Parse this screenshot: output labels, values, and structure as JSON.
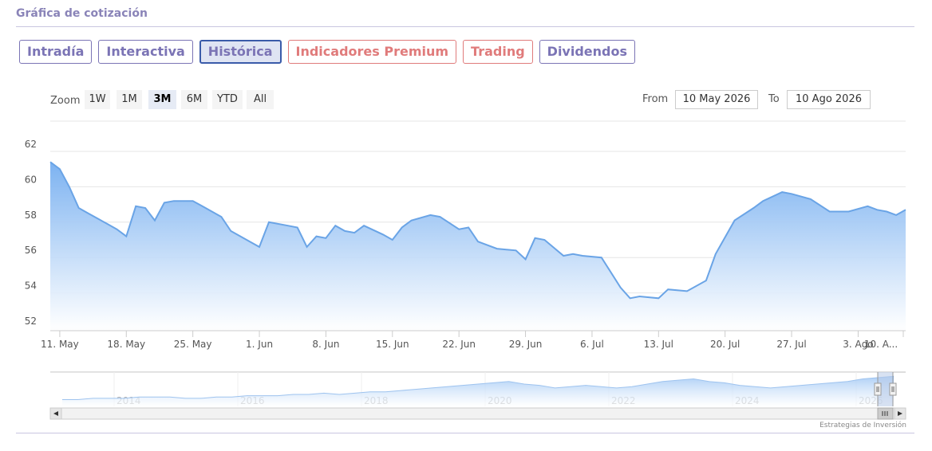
{
  "page": {
    "section_title": "Gráfica de cotización",
    "credit": "Estrategias de Inversión"
  },
  "tabs": [
    {
      "label": "Intradía",
      "state": "default"
    },
    {
      "label": "Interactiva",
      "state": "default"
    },
    {
      "label": "Histórica",
      "state": "active"
    },
    {
      "label": "Indicadores Premium",
      "state": "red"
    },
    {
      "label": "Trading",
      "state": "red"
    },
    {
      "label": "Dividendos",
      "state": "default"
    }
  ],
  "zoom": {
    "label": "Zoom",
    "buttons": [
      "1W",
      "1M",
      "3M",
      "6M",
      "YTD",
      "All"
    ],
    "selected": "3M"
  },
  "range": {
    "from_label": "From",
    "from_value": "10 May 2026",
    "to_label": "To",
    "to_value": "10 Ago 2026"
  },
  "colors": {
    "line": "#6aa4e6",
    "fill_top": "#75aef0",
    "fill_bottom": "#ffffff",
    "tab_primary": "#7b74b5",
    "tab_red": "#e07b7b",
    "title": "#8a84b8"
  },
  "chart_data": {
    "type": "area",
    "title": "",
    "xlabel": "",
    "ylabel": "",
    "ylim": [
      52,
      62
    ],
    "y_ticks": [
      52,
      54,
      56,
      58,
      60,
      62
    ],
    "x_ticks": [
      "11. May",
      "18. May",
      "25. May",
      "1. Jun",
      "8. Jun",
      "15. Jun",
      "22. Jun",
      "29. Jun",
      "6. Jul",
      "13. Jul",
      "20. Jul",
      "27. Jul",
      "3. Ago",
      "10. A..."
    ],
    "grid": true,
    "legend": "none",
    "series": [
      {
        "name": "",
        "values": [
          {
            "x": "2026-05-10",
            "y": 61.4
          },
          {
            "x": "2026-05-11",
            "y": 61.0
          },
          {
            "x": "2026-05-12",
            "y": 60.0
          },
          {
            "x": "2026-05-13",
            "y": 58.8
          },
          {
            "x": "2026-05-14",
            "y": 58.5
          },
          {
            "x": "2026-05-15",
            "y": 58.2
          },
          {
            "x": "2026-05-16",
            "y": 57.9
          },
          {
            "x": "2026-05-17",
            "y": 57.6
          },
          {
            "x": "2026-05-18",
            "y": 57.2
          },
          {
            "x": "2026-05-19",
            "y": 58.9
          },
          {
            "x": "2026-05-20",
            "y": 58.8
          },
          {
            "x": "2026-05-21",
            "y": 58.1
          },
          {
            "x": "2026-05-22",
            "y": 59.1
          },
          {
            "x": "2026-05-23",
            "y": 59.2
          },
          {
            "x": "2026-05-25",
            "y": 59.2
          },
          {
            "x": "2026-05-26",
            "y": 58.9
          },
          {
            "x": "2026-05-28",
            "y": 58.3
          },
          {
            "x": "2026-05-29",
            "y": 57.5
          },
          {
            "x": "2026-05-31",
            "y": 56.9
          },
          {
            "x": "2026-06-01",
            "y": 56.6
          },
          {
            "x": "2026-06-02",
            "y": 58.0
          },
          {
            "x": "2026-06-04",
            "y": 57.8
          },
          {
            "x": "2026-06-05",
            "y": 57.7
          },
          {
            "x": "2026-06-06",
            "y": 56.6
          },
          {
            "x": "2026-06-07",
            "y": 57.2
          },
          {
            "x": "2026-06-08",
            "y": 57.1
          },
          {
            "x": "2026-06-09",
            "y": 57.8
          },
          {
            "x": "2026-06-10",
            "y": 57.5
          },
          {
            "x": "2026-06-11",
            "y": 57.4
          },
          {
            "x": "2026-06-12",
            "y": 57.8
          },
          {
            "x": "2026-06-14",
            "y": 57.3
          },
          {
            "x": "2026-06-15",
            "y": 57.0
          },
          {
            "x": "2026-06-16",
            "y": 57.7
          },
          {
            "x": "2026-06-17",
            "y": 58.1
          },
          {
            "x": "2026-06-19",
            "y": 58.4
          },
          {
            "x": "2026-06-20",
            "y": 58.3
          },
          {
            "x": "2026-06-22",
            "y": 57.6
          },
          {
            "x": "2026-06-23",
            "y": 57.7
          },
          {
            "x": "2026-06-24",
            "y": 56.9
          },
          {
            "x": "2026-06-26",
            "y": 56.5
          },
          {
            "x": "2026-06-28",
            "y": 56.4
          },
          {
            "x": "2026-06-29",
            "y": 55.9
          },
          {
            "x": "2026-06-30",
            "y": 57.1
          },
          {
            "x": "2026-07-01",
            "y": 57.0
          },
          {
            "x": "2026-07-03",
            "y": 56.1
          },
          {
            "x": "2026-07-04",
            "y": 56.2
          },
          {
            "x": "2026-07-05",
            "y": 56.1
          },
          {
            "x": "2026-07-07",
            "y": 56.0
          },
          {
            "x": "2026-07-09",
            "y": 54.3
          },
          {
            "x": "2026-07-10",
            "y": 53.7
          },
          {
            "x": "2026-07-11",
            "y": 53.8
          },
          {
            "x": "2026-07-13",
            "y": 53.7
          },
          {
            "x": "2026-07-14",
            "y": 54.2
          },
          {
            "x": "2026-07-16",
            "y": 54.1
          },
          {
            "x": "2026-07-18",
            "y": 54.7
          },
          {
            "x": "2026-07-19",
            "y": 56.2
          },
          {
            "x": "2026-07-21",
            "y": 58.1
          },
          {
            "x": "2026-07-23",
            "y": 58.8
          },
          {
            "x": "2026-07-24",
            "y": 59.2
          },
          {
            "x": "2026-07-26",
            "y": 59.7
          },
          {
            "x": "2026-07-27",
            "y": 59.6
          },
          {
            "x": "2026-07-29",
            "y": 59.3
          },
          {
            "x": "2026-07-31",
            "y": 58.6
          },
          {
            "x": "2026-08-02",
            "y": 58.6
          },
          {
            "x": "2026-08-04",
            "y": 58.9
          },
          {
            "x": "2026-08-05",
            "y": 58.7
          },
          {
            "x": "2026-08-06",
            "y": 58.6
          },
          {
            "x": "2026-08-07",
            "y": 58.4
          },
          {
            "x": "2026-08-08",
            "y": 58.7
          }
        ]
      }
    ]
  },
  "navigator": {
    "year_labels": [
      "2014",
      "2016",
      "2018",
      "2020",
      "2022",
      "2024",
      "2026"
    ],
    "values": [
      52,
      52,
      53,
      53,
      53,
      54,
      54,
      54,
      53,
      53,
      54,
      54,
      55,
      55,
      55,
      56,
      56,
      57,
      56,
      57,
      58,
      58,
      59,
      60,
      61,
      62,
      63,
      64,
      65,
      66,
      64,
      63,
      61,
      62,
      63,
      62,
      61,
      62,
      64,
      66,
      67,
      68,
      66,
      65,
      63,
      62,
      61,
      62,
      63,
      64,
      65,
      66,
      68,
      69,
      70
    ]
  }
}
